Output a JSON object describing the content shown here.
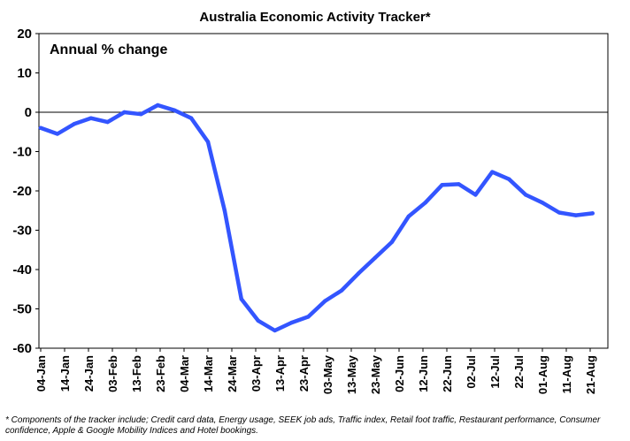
{
  "chart_data": {
    "type": "line",
    "title": "Australia Economic Activity Tracker*",
    "annotation": "Annual % change",
    "ylim": [
      -60,
      20
    ],
    "yticks": [
      20,
      10,
      0,
      -10,
      -20,
      -30,
      -40,
      -50,
      -60
    ],
    "grid": false,
    "legend": "none",
    "x_tick_labels": [
      "04-Jan",
      "14-Jan",
      "24-Jan",
      "03-Feb",
      "13-Feb",
      "23-Feb",
      "04-Mar",
      "14-Mar",
      "24-Mar",
      "03-Apr",
      "13-Apr",
      "23-Apr",
      "03-May",
      "13-May",
      "23-May",
      "02-Jun",
      "12-Jun",
      "22-Jun",
      "02-Jul",
      "12-Jul",
      "22-Jul",
      "01-Aug",
      "11-Aug",
      "21-Aug"
    ],
    "series": [
      {
        "color": "#3355ff",
        "x": [
          "04-Jan",
          "11-Jan",
          "18-Jan",
          "25-Jan",
          "01-Feb",
          "08-Feb",
          "15-Feb",
          "22-Feb",
          "29-Feb",
          "07-Mar",
          "14-Mar",
          "21-Mar",
          "28-Mar",
          "04-Apr",
          "11-Apr",
          "18-Apr",
          "25-Apr",
          "02-May",
          "09-May",
          "16-May",
          "23-May",
          "30-May",
          "06-Jun",
          "13-Jun",
          "20-Jun",
          "27-Jun",
          "04-Jul",
          "11-Jul",
          "18-Jul",
          "25-Jul",
          "01-Aug",
          "08-Aug",
          "15-Aug",
          "22-Aug"
        ],
        "values": [
          -4,
          -5.5,
          -3,
          -1.5,
          -2.5,
          0,
          -0.5,
          1.8,
          0.5,
          -1.5,
          -7.5,
          -25,
          -47.5,
          -53,
          -55.5,
          -53.5,
          -52,
          -48,
          -45.3,
          -41,
          -37,
          -33,
          -26.5,
          -23,
          -18.5,
          -18.3,
          -21,
          -15.2,
          -17,
          -21,
          -23,
          -25.5,
          -26.2,
          -25.7
        ]
      }
    ]
  },
  "footnote": "* Components of the tracker include; Credit card data, Energy usage, SEEK job ads, Traffic index, Retail foot traffic, Restaurant performance, Consumer confidence, Apple & Google Mobility Indices and Hotel bookings."
}
